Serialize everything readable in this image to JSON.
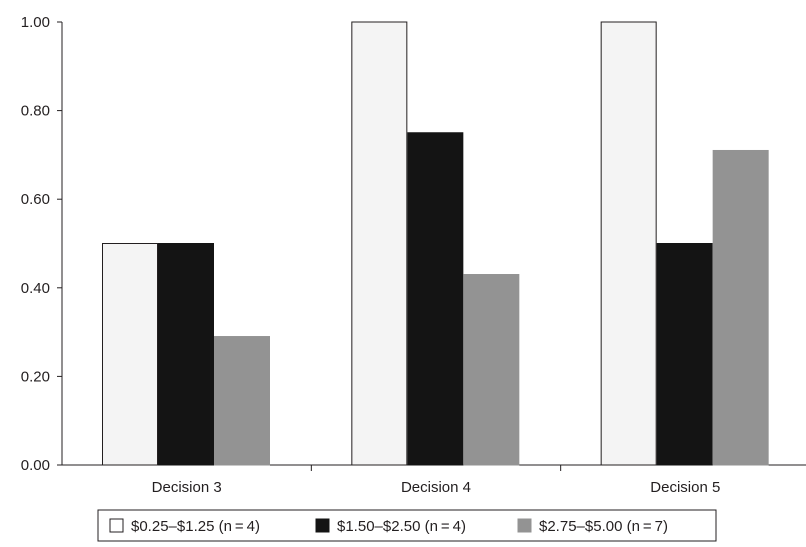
{
  "chart_data": {
    "type": "bar",
    "categories": [
      "Decision 3",
      "Decision 4",
      "Decision 5"
    ],
    "series": [
      {
        "name": "$0.25–$1.25 (n = 4)",
        "values": [
          0.5,
          1.0,
          1.0
        ],
        "color": "#f4f4f4",
        "stroke": "#231f20"
      },
      {
        "name": "$1.50–$2.50 (n = 4)",
        "values": [
          0.5,
          0.75,
          0.5
        ],
        "color": "#141414",
        "stroke": "#141414"
      },
      {
        "name": "$2.75–$5.00 (n = 7)",
        "values": [
          0.29,
          0.43,
          0.71
        ],
        "color": "#939393",
        "stroke": "#939393"
      }
    ],
    "yticks": [
      "0.00",
      "0.20",
      "0.40",
      "0.60",
      "0.80",
      "1.00"
    ],
    "ylim": [
      0,
      1
    ],
    "title": "",
    "xlabel": "",
    "ylabel": "",
    "grid": false,
    "legend_position": "bottom",
    "legend_markers": [
      "□",
      "■",
      "■"
    ]
  }
}
